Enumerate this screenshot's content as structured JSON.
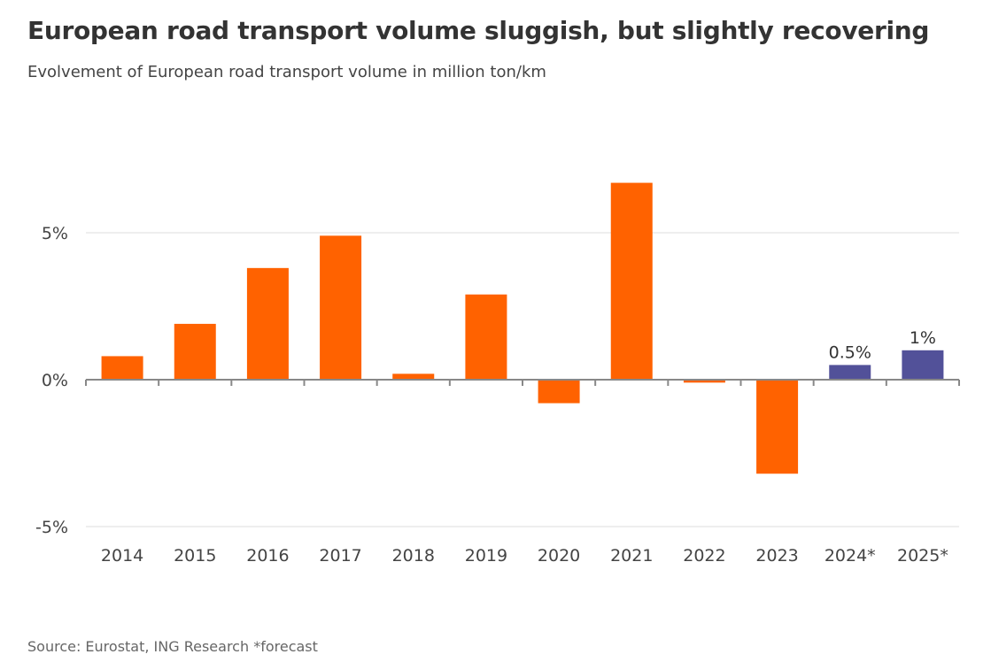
{
  "title": "European road transport volume sluggish, but slightly recovering",
  "subtitle": "Evolvement of European road transport volume in million ton/km",
  "source": "Source: Eurostat, ING Research *forecast",
  "colors": {
    "actual": "#ff6200",
    "forecast": "#525199",
    "grid": "#dddddd",
    "axis": "#888888"
  },
  "chart_data": {
    "type": "bar",
    "categories": [
      "2014",
      "2015",
      "2016",
      "2017",
      "2018",
      "2019",
      "2020",
      "2021",
      "2022",
      "2023",
      "2024*",
      "2025*"
    ],
    "values": [
      0.8,
      1.9,
      3.8,
      4.9,
      0.2,
      2.9,
      -0.8,
      6.7,
      -0.1,
      -3.2,
      0.5,
      1.0
    ],
    "forecast": [
      false,
      false,
      false,
      false,
      false,
      false,
      false,
      false,
      false,
      false,
      true,
      true
    ],
    "data_labels": [
      "",
      "",
      "",
      "",
      "",
      "",
      "",
      "",
      "",
      "",
      "0.5%",
      "1%"
    ],
    "yticks": [
      -5,
      0,
      5
    ],
    "ytick_labels": [
      "-5%",
      "0%",
      "5%"
    ],
    "ylim": [
      -5,
      8
    ],
    "grid": true,
    "xlabel": "",
    "ylabel": ""
  }
}
